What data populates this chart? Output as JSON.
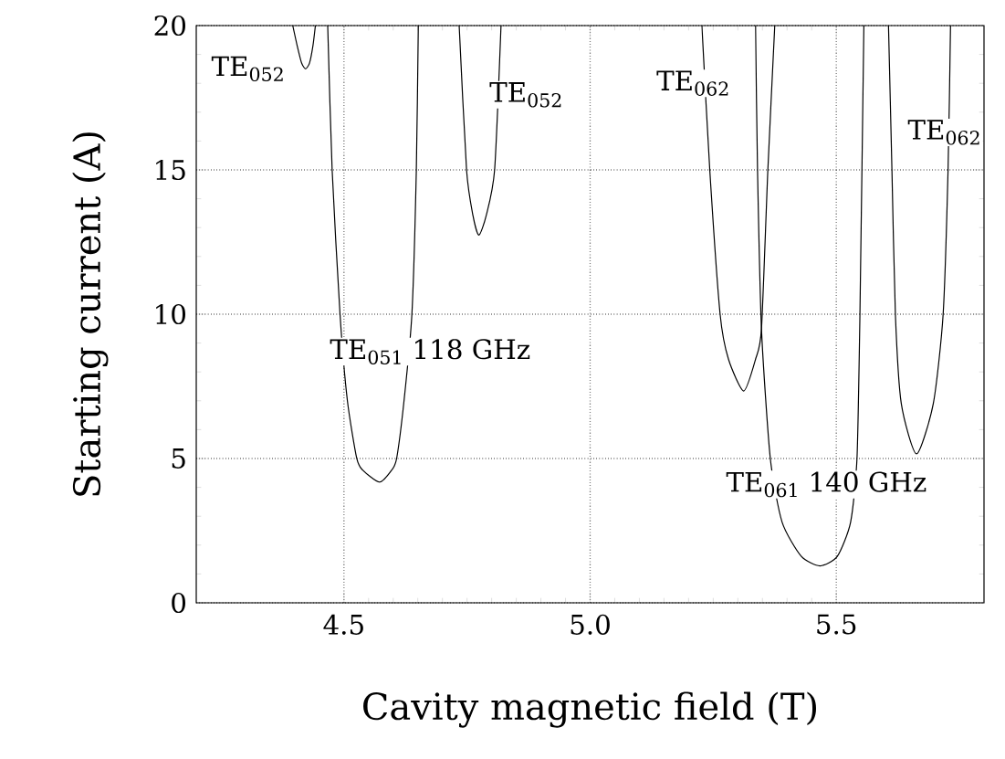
{
  "chart_data": {
    "type": "line",
    "xlabel": "Cavity magnetic field (T)",
    "ylabel": "Starting current (A)",
    "xlim": [
      4.2,
      5.8
    ],
    "ylim": [
      0,
      20
    ],
    "xticks": [
      {
        "value": 4.5,
        "label": "4.5"
      },
      {
        "value": 5.0,
        "label": "5.0"
      },
      {
        "value": 5.5,
        "label": "5.5"
      }
    ],
    "yticks": [
      0,
      5,
      10,
      15,
      20
    ],
    "grid": true,
    "series": [
      {
        "color": "#000000",
        "x": [
          4.396,
          4.405,
          4.414,
          4.422,
          4.43,
          4.437,
          4.442
        ],
        "values": [
          20,
          19.3,
          18.7,
          18.5,
          18.7,
          19.3,
          20
        ]
      },
      {
        "color": "#000000",
        "x": [
          4.467,
          4.476,
          4.492,
          4.507,
          4.526,
          4.538,
          4.572,
          4.597,
          4.607,
          4.622,
          4.638,
          4.647,
          4.651
        ],
        "values": [
          20,
          15,
          10,
          7,
          5,
          4.6,
          4.18,
          4.6,
          5,
          7,
          10,
          15,
          20
        ]
      },
      {
        "color": "#000000",
        "x": [
          4.734,
          4.749,
          4.762,
          4.774,
          4.789,
          4.806,
          4.819
        ],
        "values": [
          20,
          15,
          13.42,
          12.74,
          13.42,
          15,
          20
        ]
      },
      {
        "color": "#000000",
        "x": [
          5.227,
          5.243,
          5.264,
          5.281,
          5.312,
          5.336,
          5.348,
          5.361,
          5.375
        ],
        "values": [
          20,
          15,
          10,
          8.44,
          7.34,
          8.44,
          9.49,
          15,
          20
        ]
      },
      {
        "color": "#000000",
        "x": [
          5.336,
          5.34,
          5.348,
          5.366,
          5.39,
          5.429,
          5.467,
          5.502,
          5.529,
          5.542,
          5.548,
          5.556
        ],
        "values": [
          20,
          15,
          9.49,
          5,
          2.79,
          1.61,
          1.28,
          1.61,
          2.79,
          5,
          10,
          20
        ]
      },
      {
        "color": "#000000",
        "x": [
          5.606,
          5.613,
          5.62,
          5.632,
          5.663,
          5.697,
          5.717,
          5.727,
          5.732
        ],
        "values": [
          20,
          15,
          10,
          6.9,
          5.16,
          6.9,
          10,
          15,
          20
        ]
      }
    ],
    "annotations": [
      "TE$_{052}$",
      "TE$_{052}$",
      "TE$_{062}$",
      "TE$_{062}$",
      "TE$_{051}$ 118 GHz",
      "TE$_{061}$ 140 GHz"
    ]
  }
}
